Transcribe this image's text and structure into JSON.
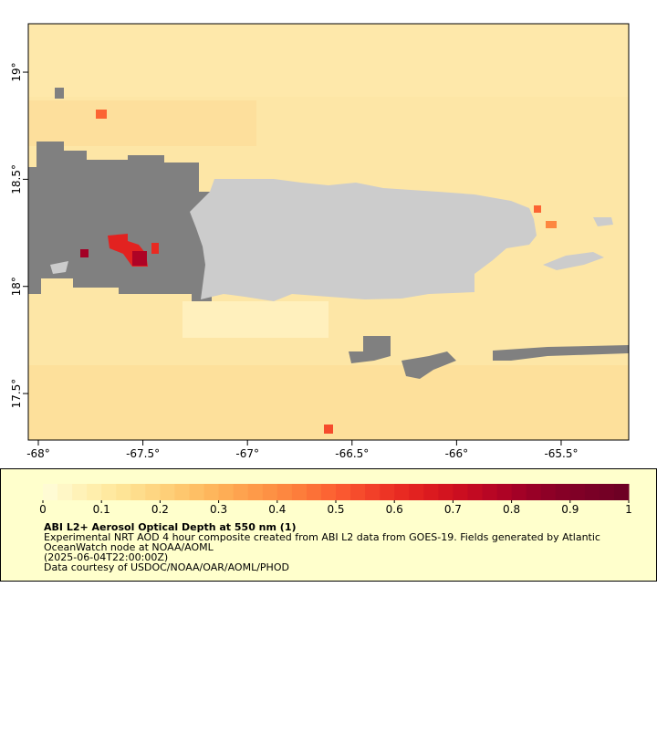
{
  "map": {
    "xlim": [
      -68.048,
      -65.177
    ],
    "ylim": [
      17.283,
      19.226
    ],
    "xticks": [
      {
        "value": -68,
        "label": "-68°"
      },
      {
        "value": -67.5,
        "label": "-67.5°"
      },
      {
        "value": -67,
        "label": "-67°"
      },
      {
        "value": -66.5,
        "label": "-66.5°"
      },
      {
        "value": -66,
        "label": "-66°"
      },
      {
        "value": -65.5,
        "label": "-65.5°"
      }
    ],
    "yticks": [
      {
        "value": 19,
        "label": "19°"
      },
      {
        "value": 18.5,
        "label": "18.5°"
      },
      {
        "value": 18,
        "label": "18°"
      },
      {
        "value": 17.5,
        "label": "17.5°"
      }
    ]
  },
  "colorbar": {
    "lim": [
      0,
      1
    ],
    "ticks": [
      0,
      0.1,
      0.2,
      0.3,
      0.4,
      0.5,
      0.6,
      0.7,
      0.8,
      0.9,
      1
    ],
    "colors": [
      "#fffbd4",
      "#fff7c6",
      "#fff2b8",
      "#ffeeac",
      "#ffe9a0",
      "#fee496",
      "#fedd8c",
      "#fed682",
      "#fecf78",
      "#fec76e",
      "#febf65",
      "#feb65c",
      "#fead55",
      "#fea34f",
      "#fe9a49",
      "#fd9144",
      "#fd8740",
      "#fd7d3b",
      "#fc7137",
      "#fc6433",
      "#fa5830",
      "#f64c2c",
      "#f24029",
      "#ed3425",
      "#e82a22",
      "#e22220",
      "#db1a1f",
      "#d3141f",
      "#cb0e20",
      "#c20a22",
      "#b80624",
      "#ae0325",
      "#a30126",
      "#980026",
      "#8e0026",
      "#860026",
      "#800026",
      "#7a0026",
      "#740025",
      "#6e0024"
    ]
  },
  "caption": {
    "title": "ABI L2+ Aerosol Optical Depth at 550 nm (1)",
    "lines": [
      "Experimental NRT AOD 4 hour composite created from ABI L2 data from GOES-19. Fields generated by Atlantic",
      "OceanWatch node at NOAA/AOML",
      "(2025-06-04T22:00:00Z)",
      "Data courtesy of USDOC/NOAA/OAR/AOML/PHOD"
    ]
  }
}
